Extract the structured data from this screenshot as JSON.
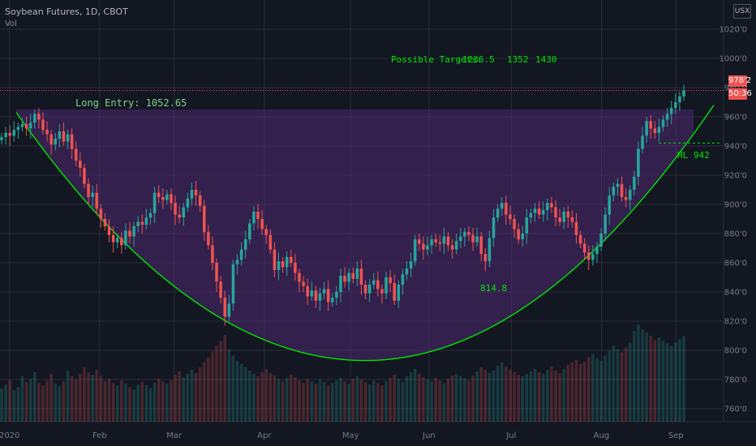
{
  "header": {
    "symbol": "Soybean Futures, 1D, CBOT",
    "indicator": "Vol",
    "currency_button": "USX"
  },
  "colors": {
    "background": "#131722",
    "bull": "#26a69a",
    "bear": "#ef5350",
    "annotation": "#00e600",
    "fill": "#5b2c83",
    "grid": "#2a2e39",
    "axis_text": "#787b86"
  },
  "price_tags": {
    "last_price": "978'2",
    "countdown": "50:36"
  },
  "annotations": {
    "targets_label": "Possible Targets:",
    "targets": [
      "1236.5",
      "1352",
      "1430"
    ],
    "long_entry": "Long Entry: 1052.65",
    "bottom_label": "814.8",
    "hl_label": "HL  942"
  },
  "chart_data": {
    "type": "candlestick",
    "symbol": "Soybean Futures",
    "interval": "1D",
    "exchange": "CBOT",
    "ylim": [
      752,
      1030
    ],
    "y_ticks": [
      "760'0",
      "780'0",
      "800'0",
      "820'0",
      "840'0",
      "860'0",
      "880'0",
      "900'0",
      "920'0",
      "940'0",
      "960'0",
      "980'0",
      "1000'0",
      "1020'0"
    ],
    "x_ticks": [
      "2020",
      "Feb",
      "Mar",
      "Apr",
      "May",
      "Jun",
      "Jul",
      "Aug",
      "Sep"
    ],
    "grid": true,
    "cup_curve": {
      "rim_left": 963,
      "bottom": 793,
      "rim_right": 968
    },
    "series": [
      {
        "name": "Close",
        "values": [
          946,
          949,
          947,
          951,
          953,
          955,
          952,
          956,
          962,
          958,
          951,
          948,
          941,
          945,
          950,
          943,
          948,
          938,
          930,
          925,
          914,
          905,
          908,
          897,
          890,
          885,
          879,
          874,
          877,
          872,
          882,
          878,
          885,
          888,
          886,
          891,
          894,
          908,
          905,
          903,
          907,
          901,
          893,
          891,
          898,
          904,
          910,
          906,
          899,
          881,
          872,
          860,
          847,
          836,
          823,
          832,
          859,
          862,
          869,
          876,
          887,
          895,
          890,
          883,
          879,
          869,
          855,
          861,
          857,
          864,
          860,
          853,
          847,
          844,
          837,
          841,
          834,
          839,
          842,
          833,
          836,
          840,
          851,
          847,
          853,
          849,
          856,
          845,
          839,
          845,
          848,
          842,
          839,
          850,
          846,
          834,
          845,
          852,
          856,
          861,
          876,
          873,
          869,
          872,
          876,
          874,
          873,
          878,
          872,
          869,
          875,
          878,
          881,
          879,
          874,
          878,
          866,
          861,
          877,
          891,
          897,
          901,
          893,
          890,
          883,
          876,
          880,
          891,
          894,
          897,
          893,
          896,
          901,
          898,
          891,
          888,
          895,
          891,
          888,
          879,
          873,
          867,
          862,
          866,
          871,
          880,
          893,
          906,
          912,
          914,
          905,
          903,
          910,
          919,
          938,
          947,
          957,
          952,
          949,
          953,
          958,
          962,
          966,
          970,
          974,
          978
        ]
      },
      {
        "name": "Volume",
        "values": [
          40,
          45,
          50,
          38,
          42,
          55,
          48,
          52,
          60,
          47,
          44,
          50,
          58,
          46,
          43,
          49,
          62,
          55,
          51,
          58,
          66,
          60,
          57,
          63,
          55,
          49,
          52,
          47,
          44,
          50,
          46,
          42,
          39,
          45,
          48,
          44,
          41,
          47,
          52,
          49,
          46,
          50,
          57,
          61,
          54,
          58,
          63,
          59,
          66,
          72,
          78,
          85,
          92,
          98,
          105,
          88,
          80,
          74,
          70,
          66,
          62,
          58,
          55,
          60,
          64,
          59,
          56,
          52,
          49,
          53,
          57,
          54,
          50,
          47,
          52,
          49,
          46,
          51,
          48,
          44,
          47,
          50,
          53,
          49,
          46,
          52,
          55,
          51,
          48,
          45,
          50,
          47,
          44,
          49,
          53,
          57,
          52,
          48,
          55,
          60,
          64,
          58,
          54,
          51,
          49,
          53,
          50,
          47,
          52,
          56,
          58,
          55,
          53,
          50,
          56,
          61,
          66,
          63,
          59,
          62,
          68,
          72,
          67,
          63,
          60,
          57,
          55,
          58,
          61,
          64,
          60,
          58,
          63,
          67,
          62,
          59,
          64,
          69,
          72,
          75,
          70,
          73,
          78,
          82,
          77,
          74,
          80,
          86,
          92,
          88,
          84,
          90,
          96,
          110,
          118,
          112,
          108,
          104,
          99,
          102,
          98,
          95,
          92,
          96,
          100,
          104
        ]
      }
    ]
  }
}
